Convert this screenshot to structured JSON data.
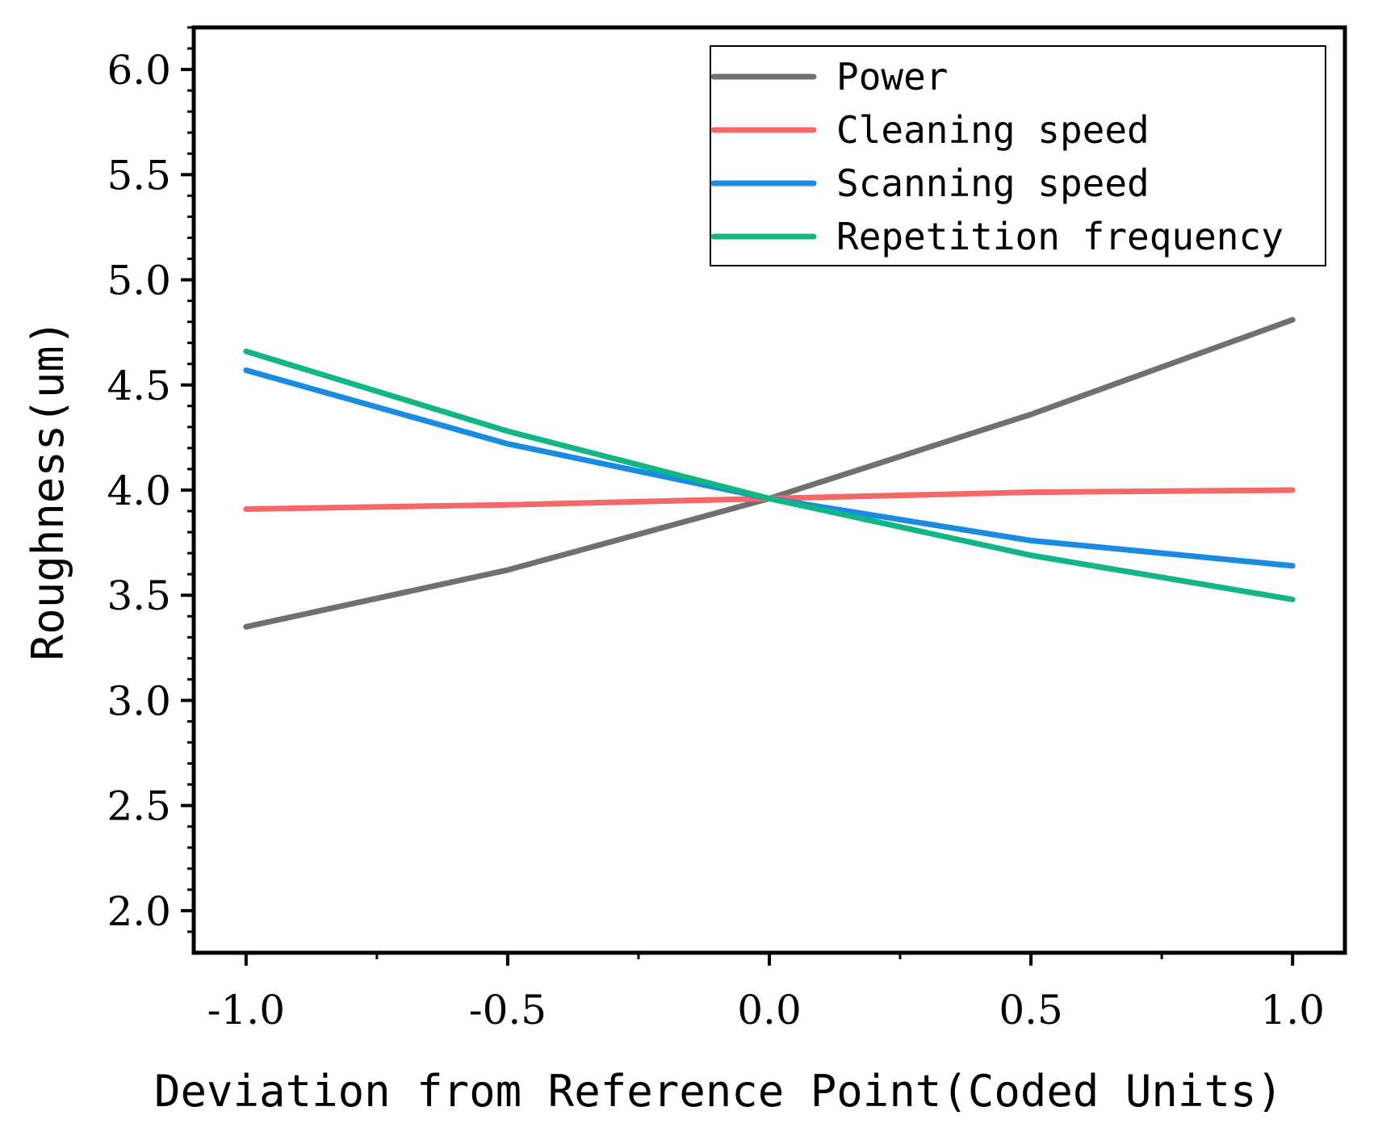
{
  "chart_data": {
    "type": "line",
    "title": "",
    "xlabel": "Deviation from Reference Point(Coded Units)",
    "ylabel": "Roughness(um)",
    "xlim": [
      -1.1,
      1.1
    ],
    "ylim": [
      1.8,
      6.2
    ],
    "x": [
      -1.0,
      -0.5,
      0.0,
      0.5,
      1.0
    ],
    "xticks": [
      "-1.0",
      "-0.5",
      "0.0",
      "0.5",
      "1.0"
    ],
    "yticks": [
      "2.0",
      "2.5",
      "3.0",
      "3.5",
      "4.0",
      "4.5",
      "5.0",
      "5.5",
      "6.0"
    ],
    "grid": false,
    "legend_position": "top-right",
    "series": [
      {
        "name": "Power",
        "color": "#707070",
        "values": [
          3.35,
          3.62,
          3.96,
          4.36,
          4.81
        ]
      },
      {
        "name": "Cleaning speed",
        "color": "#f56868",
        "values": [
          3.91,
          3.93,
          3.96,
          3.99,
          4.0
        ]
      },
      {
        "name": "Scanning speed",
        "color": "#1a8be3",
        "values": [
          4.57,
          4.22,
          3.96,
          3.76,
          3.64
        ]
      },
      {
        "name": "Repetition frequency",
        "color": "#12b585",
        "values": [
          4.66,
          4.28,
          3.96,
          3.69,
          3.48
        ]
      }
    ]
  }
}
